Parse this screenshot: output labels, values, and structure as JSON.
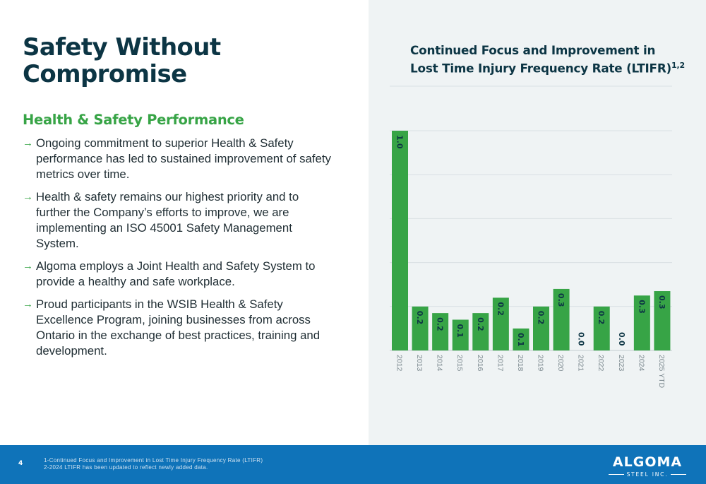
{
  "page": {
    "title": "Safety Without Compromise",
    "subtitle": "Health & Safety Performance",
    "bullet_icon": "arrow-right-icon",
    "bullets": [
      "Ongoing commitment to superior Health & Safety performance has led to sustained improvement of safety metrics over time.",
      "Health & safety remains our highest priority and to further the Company’s efforts to improve, we are implementing an ISO 45001 Safety Management System.",
      "Algoma employs a Joint Health and Safety System to provide a healthy and safe workplace.",
      "Proud participants in the WSIB Health & Safety Excellence Program, joining businesses from across Ontario in the exchange of best practices, training and development."
    ]
  },
  "footer": {
    "page_number": "4",
    "footnote_1": "1-Continued Focus and Improvement in Lost Time Injury Frequency Rate (LTIFR)",
    "footnote_2": "2-2024 LTIFR has been updated to reflect newly added data.",
    "logo_main": "ALGOMA",
    "logo_sub": "STEEL INC."
  },
  "chart_data": {
    "type": "bar",
    "title": "Continued Focus and Improvement in Lost Time Injury Frequency Rate (LTIFR)",
    "title_superscript": "1,2",
    "categories": [
      "2012",
      "2013",
      "2014",
      "2015",
      "2016",
      "2017",
      "2018",
      "2019",
      "2020",
      "2021",
      "2022",
      "2023",
      "2024",
      "2025 YTD"
    ],
    "values": [
      1.0,
      0.2,
      0.17,
      0.14,
      0.17,
      0.24,
      0.1,
      0.2,
      0.28,
      0.0,
      0.2,
      0.0,
      0.25,
      0.27
    ],
    "data_labels": [
      "1.0",
      "0.2",
      "0.2",
      "0.1",
      "0.2",
      "0.2",
      "0.1",
      "0.2",
      "0.3",
      "0.0",
      "0.2",
      "0.0",
      "0.3",
      "0.3"
    ],
    "ylim": [
      0,
      1.0
    ],
    "grid": true,
    "bar_color": "#37a446",
    "label_color": "#0c3544",
    "xlabel": "",
    "ylabel": ""
  }
}
